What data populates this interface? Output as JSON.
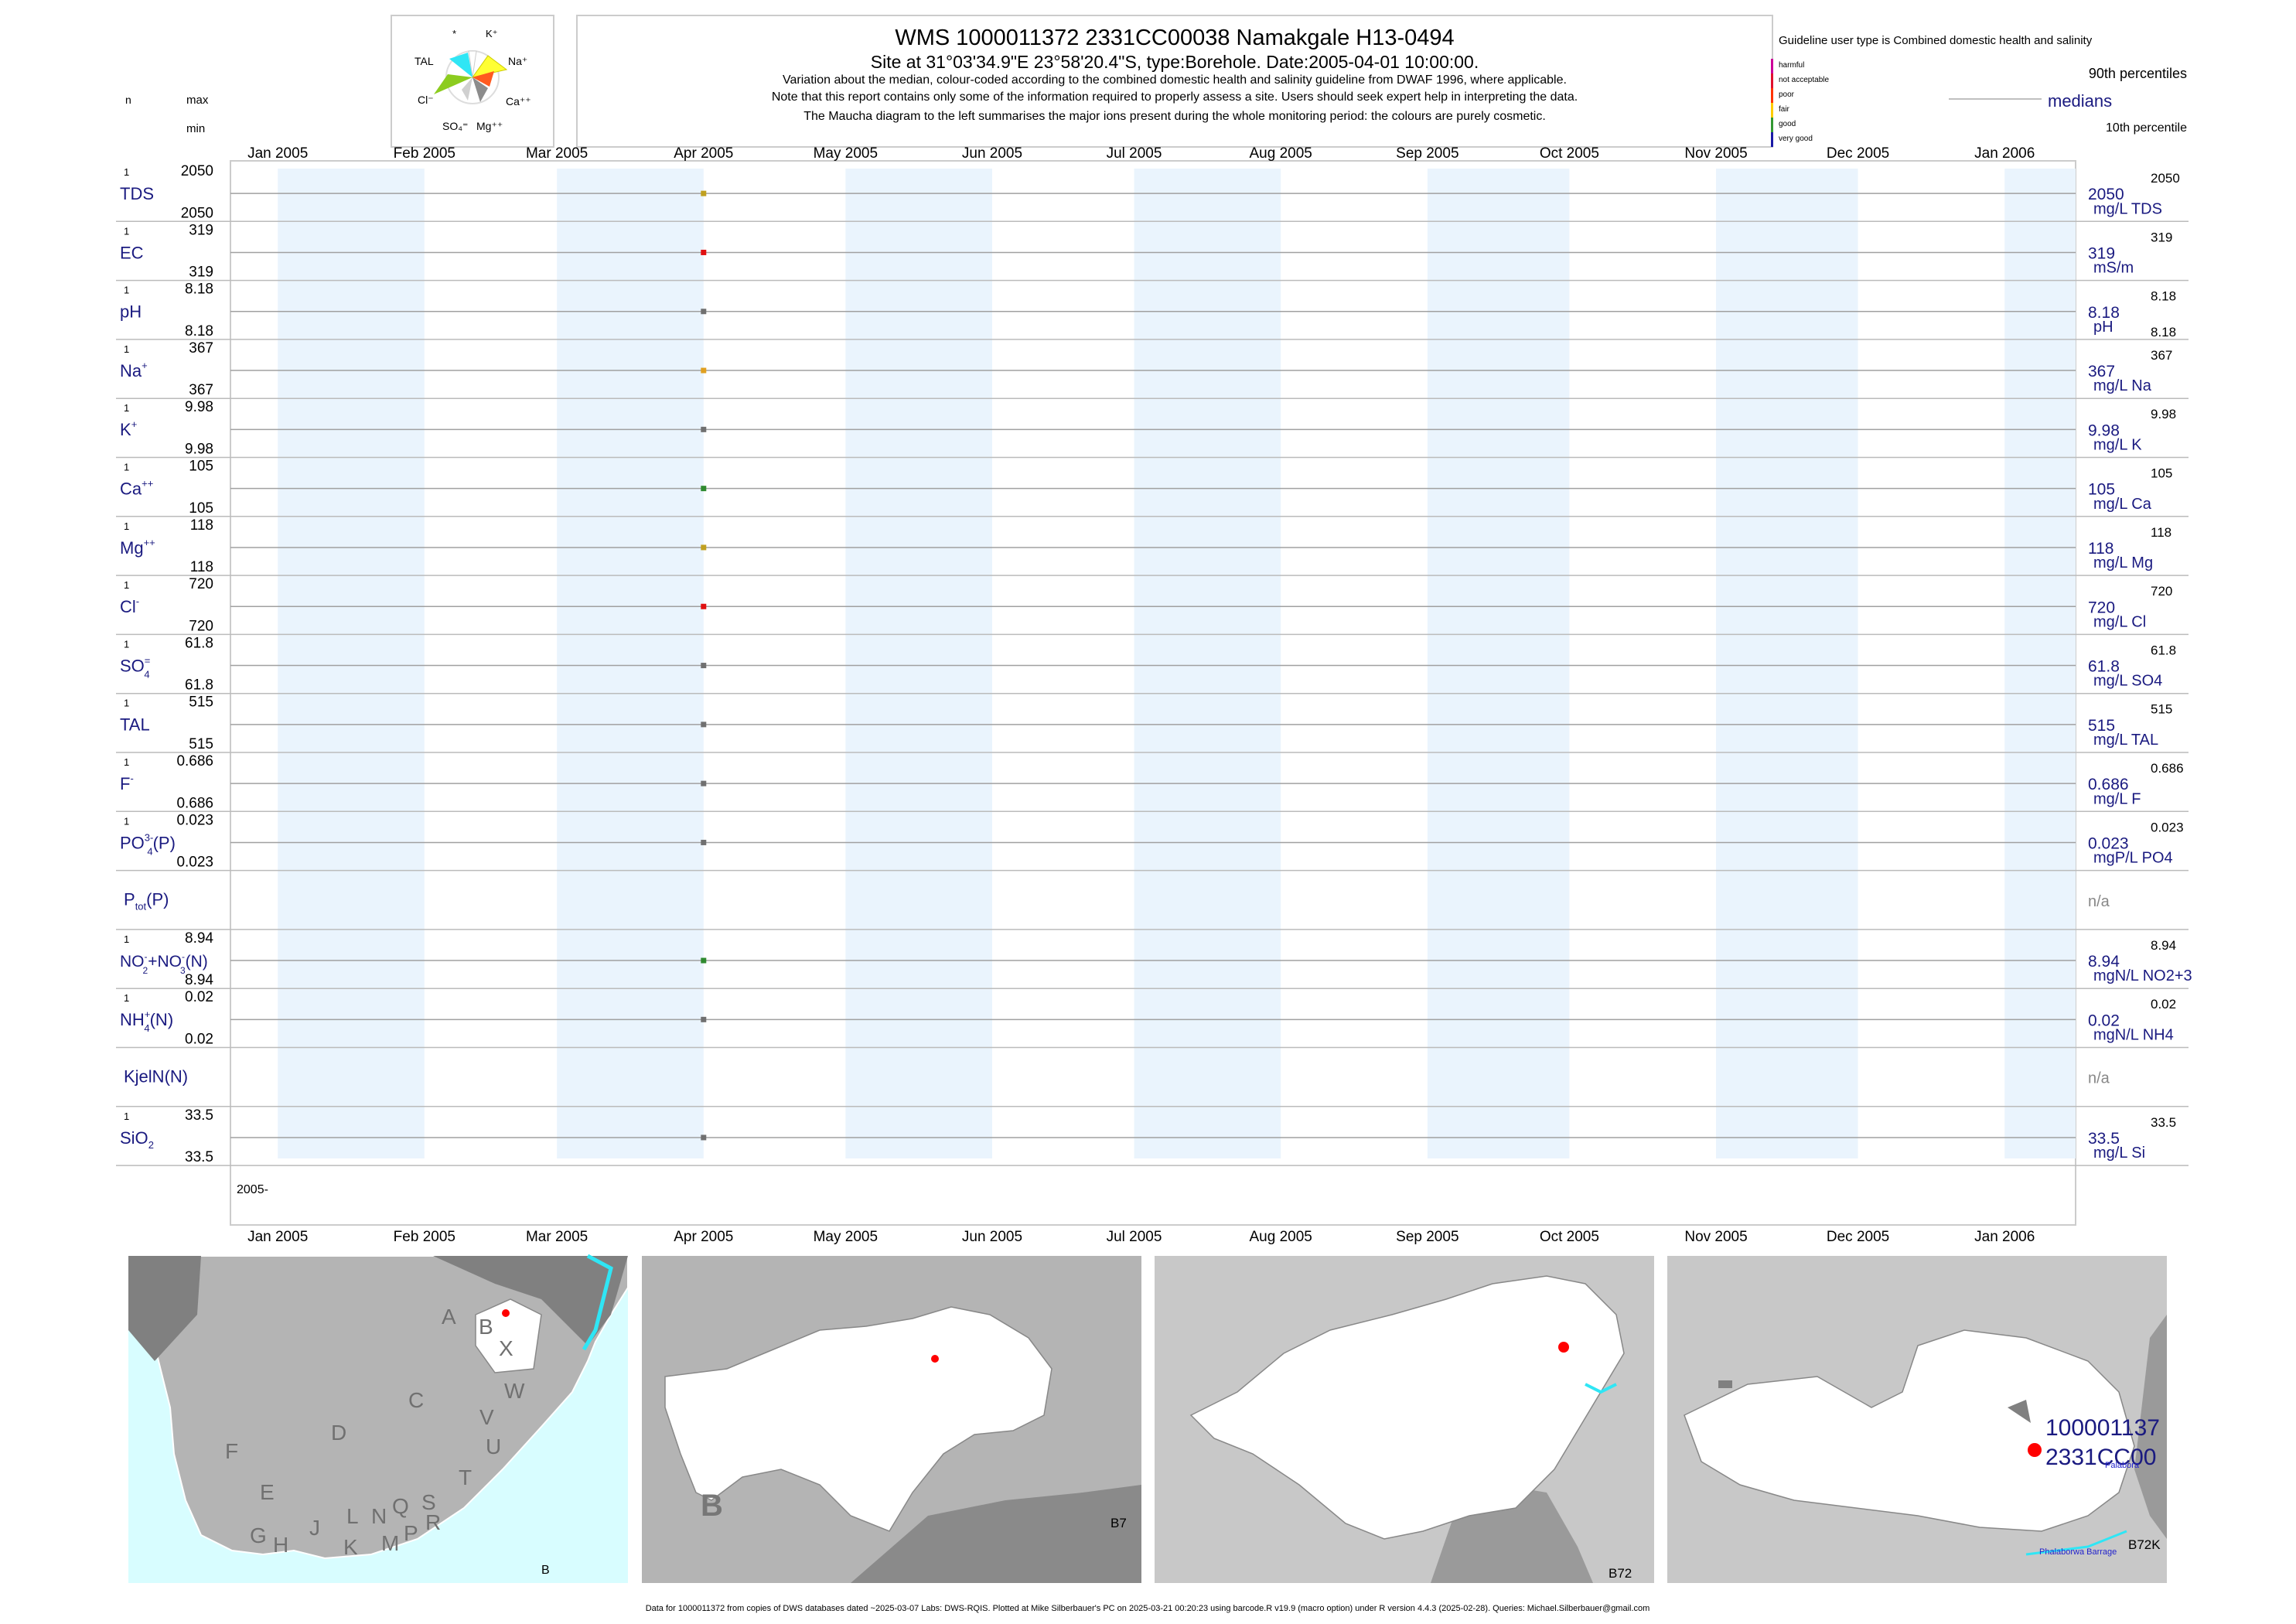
{
  "header": {
    "title": "WMS 1000011372 2331CC00038 Namakgale H13-0494",
    "subtitle": "Site at 31°03'34.9\"E 23°58'20.4\"S, type:Borehole. Date:2005-04-01 10:00:00.",
    "note1": "Variation about the median,  colour-coded according to the combined domestic health and salinity guideline from DWAF 1996, where applicable.",
    "note2": "Note that this report contains only some of the information required to properly assess a site. Users should seek expert help in interpreting the data.",
    "note3": "The Maucha diagram to the left summarises the major ions present during the whole monitoring period: the colours are purely cosmetic."
  },
  "left_header": {
    "n": "n",
    "max": "max",
    "min": "min"
  },
  "maucha": {
    "labels": {
      "star": "*",
      "k": "K⁺",
      "tal": "TAL",
      "na": "Na⁺",
      "cl": "Cl⁻",
      "ca": "Ca⁺⁺",
      "so4": "SO₄⁼",
      "mg": "Mg⁺⁺"
    },
    "colors": {
      "k": "#ffffff",
      "na": "#ffff33",
      "ca": "#ff5a1f",
      "mg": "#8c8c8c",
      "so4": "#d0d0d0",
      "cl": "#8ccc1f",
      "tal": "#2fe6f5"
    }
  },
  "legend": {
    "title": "Guideline user type is Combined domestic health and salinity",
    "categories": [
      {
        "label": "harmful",
        "color": "#cc0099"
      },
      {
        "label": "not acceptable",
        "color": "#e0102f"
      },
      {
        "label": "poor",
        "color": "#ff3300"
      },
      {
        "label": "fair",
        "color": "#ffcc00"
      },
      {
        "label": "good",
        "color": "#339933"
      },
      {
        "label": "very good",
        "color": "#1a1aa6"
      }
    ],
    "p90": "90th percentiles",
    "medians": "medians",
    "p10": "10th percentile"
  },
  "chart_data": {
    "type": "scatter",
    "x_axis": {
      "range": [
        "2004-12-22",
        "2006-01-16"
      ],
      "ticks": [
        {
          "date": "2005-01-01",
          "label": "Jan 2005"
        },
        {
          "date": "2005-02-01",
          "label": "Feb 2005"
        },
        {
          "date": "2005-03-01",
          "label": "Mar 2005"
        },
        {
          "date": "2005-04-01",
          "label": "Apr 2005"
        },
        {
          "date": "2005-05-01",
          "label": "May 2005"
        },
        {
          "date": "2005-06-01",
          "label": "Jun 2005"
        },
        {
          "date": "2005-07-01",
          "label": "Jul 2005"
        },
        {
          "date": "2005-08-01",
          "label": "Aug 2005"
        },
        {
          "date": "2005-09-01",
          "label": "Sep 2005"
        },
        {
          "date": "2005-10-01",
          "label": "Oct 2005"
        },
        {
          "date": "2005-11-01",
          "label": "Nov 2005"
        },
        {
          "date": "2005-12-01",
          "label": "Dec 2005"
        },
        {
          "date": "2006-01-01",
          "label": "Jan 2006"
        }
      ],
      "year_label": "2005-"
    },
    "sample_date": "2005-04-01",
    "series": [
      {
        "name": "TDS",
        "sup": "",
        "sub": "",
        "n": "1",
        "max": "2050",
        "min": "2050",
        "value": 2050,
        "median": "2050",
        "unit": "mg/L TDS",
        "p90": "2050",
        "p10": "",
        "color": "#c0a020"
      },
      {
        "name": "EC",
        "sup": "",
        "sub": "",
        "n": "1",
        "max": "319",
        "min": "319",
        "value": 319,
        "median": "319",
        "unit": "mS/m",
        "p90": "319",
        "p10": "",
        "color": "#e01010"
      },
      {
        "name": "pH",
        "sup": "",
        "sub": "",
        "n": "1",
        "max": "8.18",
        "min": "8.18",
        "value": 8.18,
        "median": "8.18",
        "unit": "pH",
        "p90": "8.18",
        "p10": "8.18",
        "color": "#707070"
      },
      {
        "name": "Na",
        "sup": "+",
        "sub": "",
        "n": "1",
        "max": "367",
        "min": "367",
        "value": 367,
        "median": "367",
        "unit": "mg/L Na",
        "p90": "367",
        "p10": "",
        "color": "#e0a020"
      },
      {
        "name": "K",
        "sup": "+",
        "sub": "",
        "n": "1",
        "max": "9.98",
        "min": "9.98",
        "value": 9.98,
        "median": "9.98",
        "unit": "mg/L K",
        "p90": "9.98",
        "p10": "",
        "color": "#707070"
      },
      {
        "name": "Ca",
        "sup": "++",
        "sub": "",
        "n": "1",
        "max": "105",
        "min": "105",
        "value": 105,
        "median": "105",
        "unit": "mg/L Ca",
        "p90": "105",
        "p10": "",
        "color": "#2f8a2f"
      },
      {
        "name": "Mg",
        "sup": "++",
        "sub": "",
        "n": "1",
        "max": "118",
        "min": "118",
        "value": 118,
        "median": "118",
        "unit": "mg/L Mg",
        "p90": "118",
        "p10": "",
        "color": "#c0a020"
      },
      {
        "name": "Cl",
        "sup": "-",
        "sub": "",
        "n": "1",
        "max": "720",
        "min": "720",
        "value": 720,
        "median": "720",
        "unit": "mg/L Cl",
        "p90": "720",
        "p10": "",
        "color": "#e01010"
      },
      {
        "name": "SO",
        "sup": "=",
        "sub": "4",
        "n": "1",
        "max": "61.8",
        "min": "61.8",
        "value": 61.8,
        "median": "61.8",
        "unit": "mg/L SO4",
        "p90": "61.8",
        "p10": "",
        "color": "#707070"
      },
      {
        "name": "TAL",
        "sup": "",
        "sub": "",
        "n": "1",
        "max": "515",
        "min": "515",
        "value": 515,
        "median": "515",
        "unit": "mg/L TAL",
        "p90": "515",
        "p10": "",
        "color": "#707070"
      },
      {
        "name": "F",
        "sup": "-",
        "sub": "",
        "n": "1",
        "max": "0.686",
        "min": "0.686",
        "value": 0.686,
        "median": "0.686",
        "unit": "mg/L F",
        "p90": "0.686",
        "p10": "",
        "color": "#707070"
      },
      {
        "name": "PO",
        "sup": "3-",
        "sub": "4",
        "suffix": "(P)",
        "n": "1",
        "max": "0.023",
        "min": "0.023",
        "value": 0.023,
        "median": "0.023",
        "unit": "mgP/L PO4",
        "p90": "0.023",
        "p10": "",
        "color": "#707070"
      },
      {
        "name": "P",
        "sup": "",
        "sub": "tot",
        "suffix": "(P)",
        "n": "",
        "max": "",
        "min": "",
        "value": null,
        "median": "n/a",
        "unit": "",
        "p90": "",
        "p10": "",
        "color": "#707070"
      },
      {
        "name": "NO2+NO3(N)",
        "label_html": "no2no3",
        "n": "1",
        "max": "8.94",
        "min": "8.94",
        "value": 8.94,
        "median": "8.94",
        "unit": "mgN/L NO2+3",
        "p90": "8.94",
        "p10": "",
        "color": "#2f8a2f"
      },
      {
        "name": "NH",
        "sup": "+",
        "sub": "4",
        "suffix": "(N)",
        "n": "1",
        "max": "0.02",
        "min": "0.02",
        "value": 0.02,
        "median": "0.02",
        "unit": "mgN/L NH4",
        "p90": "0.02",
        "p10": "",
        "color": "#707070"
      },
      {
        "name": "KjelN(N)",
        "sup": "",
        "sub": "",
        "n": "",
        "max": "",
        "min": "",
        "value": null,
        "median": "n/a",
        "unit": "",
        "p90": "",
        "p10": "",
        "color": "#707070"
      },
      {
        "name": "SiO",
        "sup": "",
        "sub": "2",
        "n": "1",
        "max": "33.5",
        "min": "33.5",
        "value": 33.5,
        "median": "33.5",
        "unit": "mg/L Si",
        "p90": "33.5",
        "p10": "",
        "color": "#707070"
      }
    ]
  },
  "maps": {
    "map1": {
      "letters": [
        "A",
        "B",
        "X",
        "C",
        "W",
        "D",
        "V",
        "U",
        "T",
        "F",
        "E",
        "L",
        "N",
        "Q",
        "S",
        "G",
        "H",
        "J",
        "K",
        "M",
        "P",
        "R"
      ],
      "corner": "B"
    },
    "map2": {
      "big": "B",
      "corner": "B7"
    },
    "map3": {
      "corner": "B72"
    },
    "map4": {
      "site1": "100001137",
      "site2": "2331CC00",
      "place1": "Palabora",
      "place2": "Phalaborwa Barrage",
      "corner": "B72K"
    }
  },
  "footer": "Data for 1000011372 from copies of DWS databases dated ~2025-03-07 Labs: DWS-RQIS. Plotted at Mike Silberbauer's PC on 2025-03-21 00:20:23 using barcode.R v19.9 (macro option) under R version 4.4.3 (2025-02-28). Queries: Michael.Silberbauer@gmail.com"
}
